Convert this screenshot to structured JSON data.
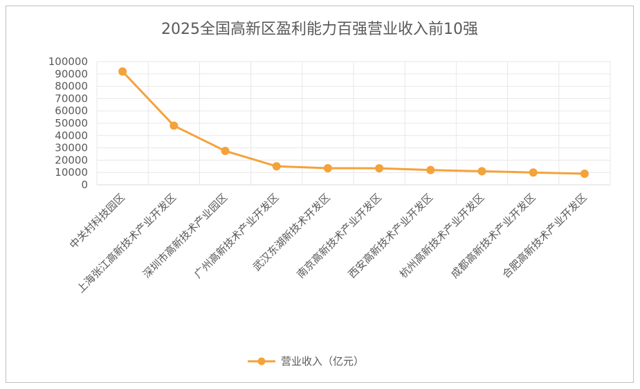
{
  "chart_data": {
    "type": "line",
    "title": "2025全国高新区盈利能力百强营业收入前10强",
    "categories": [
      "中关村科技园区",
      "上海张江高新技术产业开发区",
      "深圳市高新技术产业园区",
      "广州高新技术产业开发区",
      "武汉东湖新技术开发区",
      "南京高新技术产业开发区",
      "西安高新技术产业开发区",
      "杭州高新技术产业开发区",
      "成都高新技术产业开发区",
      "合肥高新技术产业开发区"
    ],
    "series": [
      {
        "name": "营业收入（亿元）",
        "values": [
          92000,
          48000,
          27500,
          15000,
          13500,
          13400,
          12000,
          11000,
          10000,
          9000
        ],
        "color": "#f4a23a"
      }
    ],
    "yticks": [
      "0",
      "10000",
      "20000",
      "30000",
      "40000",
      "50000",
      "60000",
      "70000",
      "80000",
      "90000",
      "100000"
    ],
    "ylim": [
      0,
      100000
    ],
    "grid": true,
    "legend_position": "bottom"
  }
}
